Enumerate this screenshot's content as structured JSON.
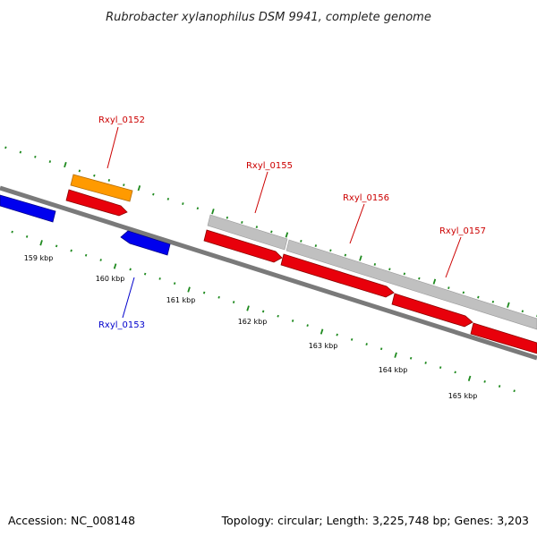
{
  "title": "Rubrobacter xylanophilus DSM 9941, complete genome",
  "footer": {
    "accession": "Accession: NC_008148",
    "summary": "Topology: circular; Length: 3,225,748 bp; Genes: 3,203"
  },
  "colors": {
    "backbone": "#7a7a7a",
    "tick": "#1f8a1f",
    "forward_cds": "#e8000b",
    "reverse_cds": "#0000ee",
    "orange_feature": "#ff9a00",
    "gray_feature": "#c0c0c0",
    "forward_label": "#cc0000",
    "reverse_label": "#0000cc"
  },
  "scale": {
    "labels": [
      "159 kbp",
      "160 kbp",
      "161 kbp",
      "162 kbp",
      "163 kbp",
      "164 kbp",
      "165 kbp"
    ]
  },
  "gene_labels": [
    {
      "text": "Rxyl_0152",
      "strand": "forward"
    },
    {
      "text": "Rxyl_0153",
      "strand": "reverse"
    },
    {
      "text": "Rxyl_0155",
      "strand": "forward"
    },
    {
      "text": "Rxyl_0156",
      "strand": "forward"
    },
    {
      "text": "Rxyl_0157",
      "strand": "forward"
    }
  ]
}
